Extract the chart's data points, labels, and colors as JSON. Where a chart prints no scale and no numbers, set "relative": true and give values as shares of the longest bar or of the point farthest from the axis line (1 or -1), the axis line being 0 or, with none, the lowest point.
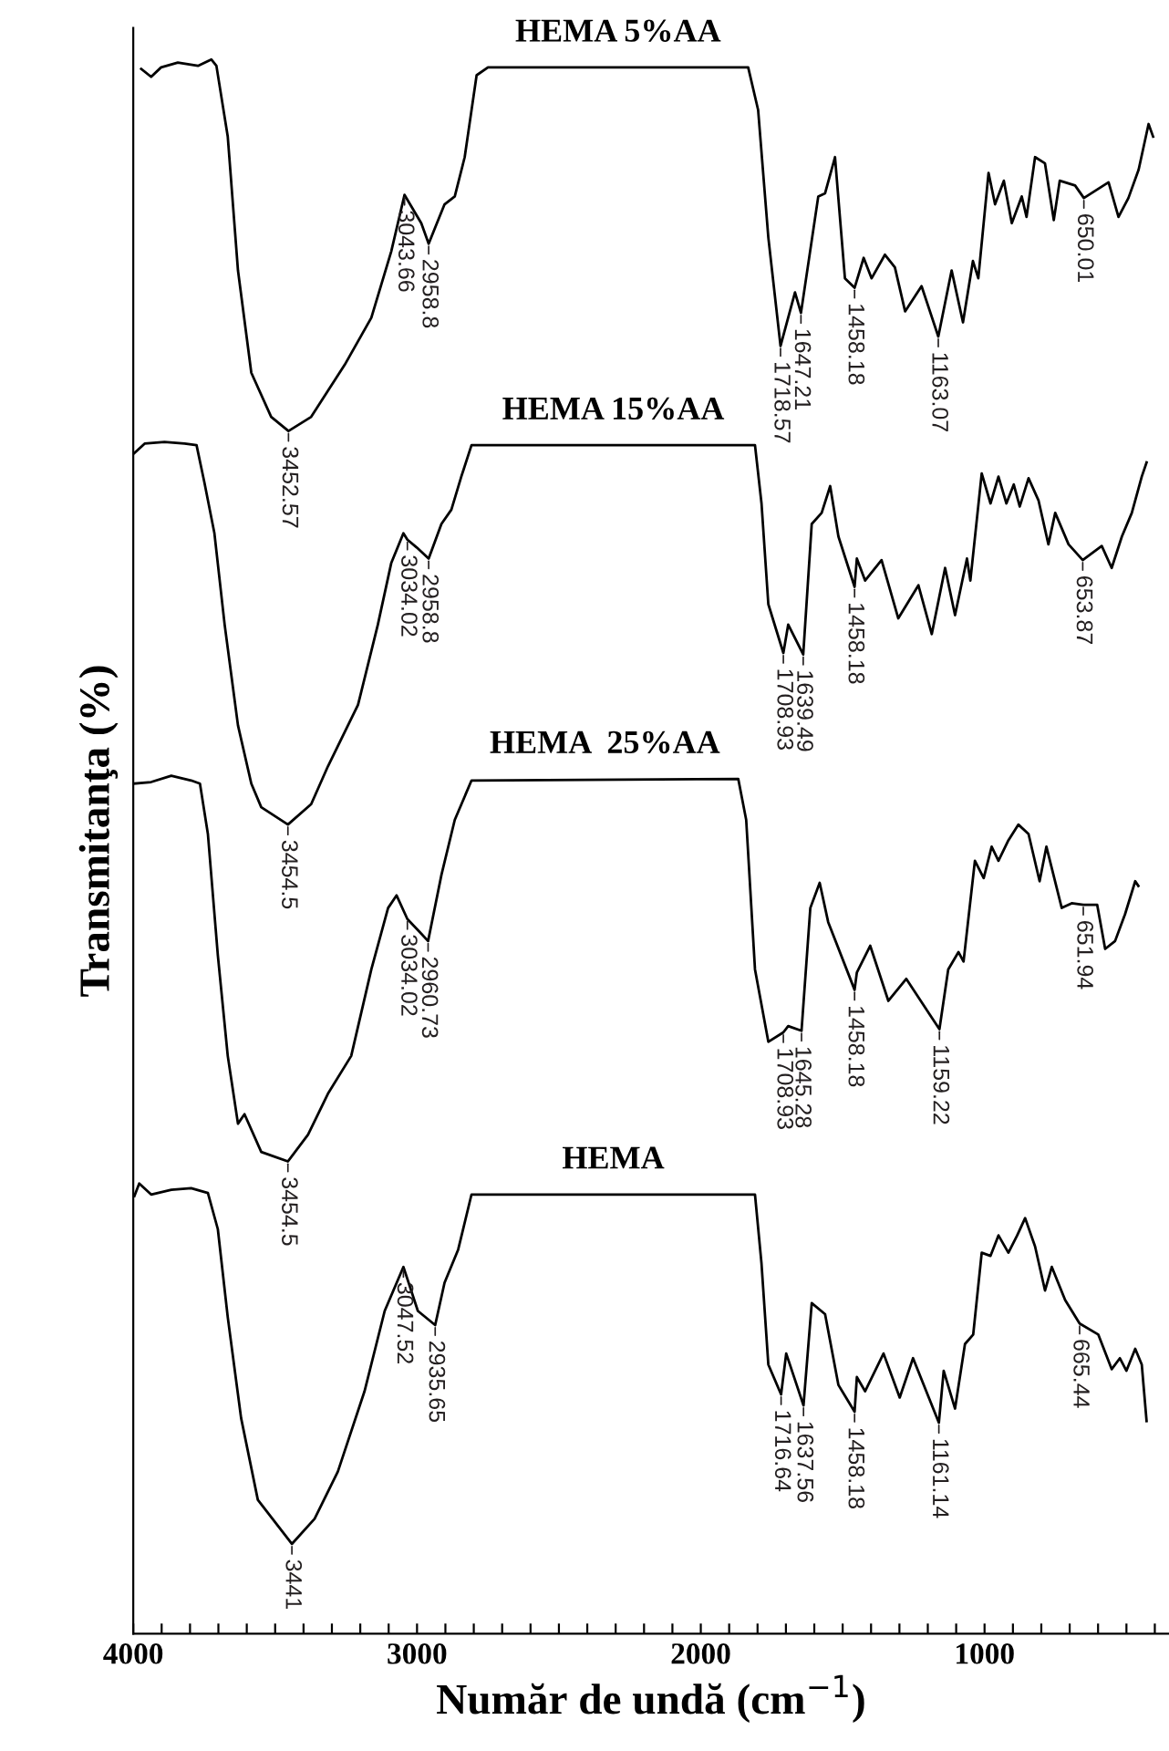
{
  "chart_data": {
    "type": "line",
    "relative": true,
    "xlabel": "Număr de undă (cm$^{−1}$)",
    "ylabel": "Transmitanţa (%)",
    "xlim": [
      4000,
      350
    ],
    "xticks": [
      4000,
      {
        "value": 3900,
        "label": null
      },
      {
        "value": 3800,
        "label": null
      },
      {
        "value": 3700,
        "label": null
      },
      {
        "value": 3600,
        "label": null
      },
      {
        "value": 3500,
        "label": null
      },
      {
        "value": 3400,
        "label": null
      },
      {
        "value": 3300,
        "label": null
      },
      {
        "value": 3200,
        "label": null
      },
      {
        "value": 3100,
        "label": null
      },
      3000,
      {
        "value": 2900,
        "label": null
      },
      {
        "value": 2800,
        "label": null
      },
      {
        "value": 2700,
        "label": null
      },
      {
        "value": 2600,
        "label": null
      },
      {
        "value": 2500,
        "label": null
      },
      {
        "value": 2400,
        "label": null
      },
      {
        "value": 2300,
        "label": null
      },
      {
        "value": 2200,
        "label": null
      },
      {
        "value": 2100,
        "label": null
      },
      2000,
      {
        "value": 1900,
        "label": null
      },
      {
        "value": 1800,
        "label": null
      },
      {
        "value": 1700,
        "label": null
      },
      {
        "value": 1600,
        "label": null
      },
      {
        "value": 1500,
        "label": null
      },
      {
        "value": 1400,
        "label": null
      },
      {
        "value": 1300,
        "label": null
      },
      {
        "value": 1200,
        "label": null
      },
      {
        "value": 1100,
        "label": null
      },
      1000,
      {
        "value": 900,
        "label": null
      },
      {
        "value": 800,
        "label": null
      },
      {
        "value": 700,
        "label": null
      },
      {
        "value": 600,
        "label": null
      },
      {
        "value": 500,
        "label": null
      },
      {
        "value": 400,
        "label": null
      }
    ],
    "series": [
      {
        "name": "HEMA 5%AA",
        "color": "#000000",
        "x": [
          3972,
          3937,
          3902,
          3843,
          3772,
          3725,
          3707,
          3667,
          3631,
          3584,
          3514,
          3453,
          3373,
          3255,
          3161,
          3091,
          3044,
          2985,
          2959,
          2903,
          2867,
          2832,
          2790,
          2750,
          1833,
          1798,
          1762,
          1719,
          1668,
          1647,
          1586,
          1562,
          1527,
          1492,
          1458,
          1426,
          1398,
          1351,
          1316,
          1280,
          1222,
          1163,
          1116,
          1076,
          1041,
          1022,
          986,
          963,
          932,
          904,
          869,
          852,
          822,
          787,
          756,
          735,
          681,
          650,
          563,
          528,
          493,
          457,
          422,
          406
        ],
        "values": [
          0.994,
          0.989,
          0.995,
          0.998,
          0.996,
          1,
          0.996,
          0.951,
          0.866,
          0.801,
          0.773,
          0.764,
          0.773,
          0.806,
          0.836,
          0.878,
          0.914,
          0.896,
          0.883,
          0.908,
          0.913,
          0.938,
          0.99,
          0.995,
          0.995,
          0.968,
          0.887,
          0.818,
          0.852,
          0.839,
          0.913,
          0.915,
          0.938,
          0.861,
          0.855,
          0.874,
          0.861,
          0.876,
          0.868,
          0.84,
          0.856,
          0.824,
          0.866,
          0.833,
          0.872,
          0.861,
          0.928,
          0.908,
          0.923,
          0.896,
          0.913,
          0.9,
          0.938,
          0.934,
          0.898,
          0.923,
          0.92,
          0.912,
          0.922,
          0.9,
          0.912,
          0.93,
          0.959,
          0.951
        ]
      },
      {
        "name": "HEMA 15%AA",
        "color": "#000000",
        "x": [
          3996,
          3960,
          3890,
          3819,
          3777,
          3749,
          3714,
          3678,
          3631,
          3584,
          3549,
          3455,
          3373,
          3314,
          3208,
          3138,
          3091,
          3048,
          3034,
          3001,
          2959,
          2914,
          2879,
          2844,
          2808,
          1809,
          1786,
          1762,
          1709,
          1692,
          1639,
          1609,
          1574,
          1544,
          1515,
          1458,
          1450,
          1421,
          1363,
          1304,
          1233,
          1186,
          1139,
          1104,
          1062,
          1050,
          1010,
          979,
          951,
          923,
          897,
          876,
          845,
          810,
          775,
          751,
          704,
          654,
          587,
          552,
          516,
          481,
          446,
          429
        ],
        "values": [
          0.75,
          0.756,
          0.757,
          0.756,
          0.755,
          0.731,
          0.699,
          0.641,
          0.577,
          0.54,
          0.525,
          0.514,
          0.527,
          0.551,
          0.59,
          0.641,
          0.68,
          0.699,
          0.695,
          0.69,
          0.683,
          0.705,
          0.714,
          0.735,
          0.755,
          0.755,
          0.718,
          0.654,
          0.623,
          0.641,
          0.622,
          0.705,
          0.712,
          0.729,
          0.697,
          0.665,
          0.683,
          0.669,
          0.682,
          0.645,
          0.666,
          0.635,
          0.677,
          0.647,
          0.683,
          0.669,
          0.737,
          0.718,
          0.735,
          0.718,
          0.73,
          0.716,
          0.734,
          0.72,
          0.692,
          0.712,
          0.692,
          0.682,
          0.691,
          0.677,
          0.697,
          0.712,
          0.735,
          0.744
        ]
      },
      {
        "name": "HEMA  25%AA",
        "color": "#000000",
        "x": [
          3996,
          3937,
          3866,
          3796,
          3765,
          3737,
          3702,
          3667,
          3631,
          3608,
          3549,
          3455,
          3384,
          3314,
          3232,
          3161,
          3102,
          3072,
          3034,
          2992,
          2961,
          2914,
          2867,
          2808,
          1868,
          1840,
          1809,
          1762,
          1709,
          1692,
          1645,
          1614,
          1581,
          1551,
          1458,
          1450,
          1403,
          1339,
          1276,
          1159,
          1128,
          1092,
          1074,
          1034,
          1003,
          975,
          951,
          916,
          881,
          845,
          806,
          782,
          728,
          693,
          652,
          603,
          575,
          540,
          505,
          469,
          458
        ],
        "values": [
          0.54,
          0.541,
          0.545,
          0.542,
          0.54,
          0.508,
          0.431,
          0.367,
          0.324,
          0.33,
          0.306,
          0.3,
          0.317,
          0.343,
          0.367,
          0.422,
          0.461,
          0.469,
          0.454,
          0.446,
          0.44,
          0.482,
          0.517,
          0.542,
          0.543,
          0.517,
          0.422,
          0.376,
          0.382,
          0.386,
          0.383,
          0.461,
          0.477,
          0.452,
          0.409,
          0.42,
          0.437,
          0.402,
          0.416,
          0.384,
          0.422,
          0.433,
          0.427,
          0.491,
          0.48,
          0.5,
          0.491,
          0.504,
          0.514,
          0.508,
          0.478,
          0.5,
          0.461,
          0.464,
          0.463,
          0.463,
          0.435,
          0.44,
          0.457,
          0.478,
          0.475
        ]
      },
      {
        "name": "HEMA",
        "color": "#000000",
        "x": [
          3996,
          3979,
          3937,
          3866,
          3796,
          3737,
          3702,
          3667,
          3620,
          3561,
          3441,
          3361,
          3279,
          3185,
          3114,
          3048,
          2997,
          2936,
          2903,
          2855,
          2808,
          1809,
          1786,
          1762,
          1717,
          1699,
          1638,
          1609,
          1562,
          1515,
          1458,
          1450,
          1421,
          1356,
          1299,
          1252,
          1161,
          1144,
          1104,
          1069,
          1040,
          1010,
          979,
          951,
          916,
          885,
          857,
          822,
          787,
          763,
          716,
          665,
          599,
          552,
          523,
          500,
          469,
          446,
          429
        ],
        "values": [
          0.278,
          0.286,
          0.279,
          0.282,
          0.283,
          0.28,
          0.257,
          0.201,
          0.137,
          0.085,
          0.057,
          0.073,
          0.103,
          0.154,
          0.205,
          0.233,
          0.205,
          0.196,
          0.223,
          0.244,
          0.279,
          0.279,
          0.235,
          0.171,
          0.152,
          0.178,
          0.145,
          0.21,
          0.203,
          0.158,
          0.141,
          0.163,
          0.154,
          0.178,
          0.15,
          0.175,
          0.134,
          0.167,
          0.143,
          0.184,
          0.19,
          0.242,
          0.24,
          0.253,
          0.242,
          0.253,
          0.264,
          0.246,
          0.218,
          0.233,
          0.212,
          0.197,
          0.19,
          0.168,
          0.175,
          0.167,
          0.181,
          0.171,
          0.135
        ]
      }
    ],
    "annotations": [
      {
        "text": "3043.66",
        "x": 3044,
        "y": 0.914
      },
      {
        "text": "2958.8",
        "x": 2959,
        "y": 0.883
      },
      {
        "text": "3452.57",
        "x": 3453,
        "y": 0.764
      },
      {
        "text": "1718.57",
        "x": 1719,
        "y": 0.818
      },
      {
        "text": "1647.21",
        "x": 1647,
        "y": 0.839
      },
      {
        "text": "1458.18",
        "x": 1458,
        "y": 0.855
      },
      {
        "text": "1163.07",
        "x": 1163,
        "y": 0.824
      },
      {
        "text": "650.01",
        "x": 650,
        "y": 0.912
      },
      {
        "text": "3034.02",
        "x": 3034,
        "y": 0.695
      },
      {
        "text": "2958.8",
        "x": 2959,
        "y": 0.683
      },
      {
        "text": "3454.5",
        "x": 3455,
        "y": 0.514
      },
      {
        "text": "1708.93",
        "x": 1709,
        "y": 0.623
      },
      {
        "text": "1639.49",
        "x": 1639,
        "y": 0.622
      },
      {
        "text": "1458.18",
        "x": 1458,
        "y": 0.665
      },
      {
        "text": "653.87",
        "x": 654,
        "y": 0.682
      },
      {
        "text": "3034.02",
        "x": 3034,
        "y": 0.454
      },
      {
        "text": "2960.73",
        "x": 2961,
        "y": 0.44
      },
      {
        "text": "3454.5",
        "x": 3455,
        "y": 0.3
      },
      {
        "text": "1708.93",
        "x": 1709,
        "y": 0.382
      },
      {
        "text": "1645.28",
        "x": 1645,
        "y": 0.383
      },
      {
        "text": "1458.18",
        "x": 1458,
        "y": 0.409
      },
      {
        "text": "1159.22",
        "x": 1159,
        "y": 0.384
      },
      {
        "text": "651.94",
        "x": 652,
        "y": 0.463
      },
      {
        "text": "3047.52",
        "x": 3048,
        "y": 0.233
      },
      {
        "text": "2935.65",
        "x": 2936,
        "y": 0.196
      },
      {
        "text": "3441",
        "x": 3441,
        "y": 0.057
      },
      {
        "text": "1716.64",
        "x": 1717,
        "y": 0.152
      },
      {
        "text": "1637.56",
        "x": 1638,
        "y": 0.145
      },
      {
        "text": "1458.18",
        "x": 1458,
        "y": 0.141
      },
      {
        "text": "1161.14",
        "x": 1161,
        "y": 0.134
      },
      {
        "text": "665.44",
        "x": 665,
        "y": 0.197
      }
    ]
  }
}
